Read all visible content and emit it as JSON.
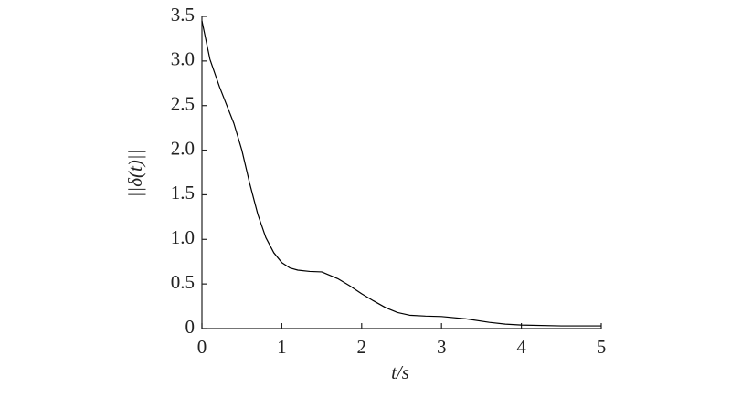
{
  "chart_data": {
    "type": "line",
    "xlabel": "t/s",
    "ylabel": "||δ(t)||",
    "x": [
      0,
      0.1,
      0.22,
      0.4,
      0.5,
      0.6,
      0.7,
      0.8,
      0.9,
      1.0,
      1.1,
      1.2,
      1.35,
      1.5,
      1.7,
      1.85,
      2.0,
      2.15,
      2.3,
      2.45,
      2.6,
      2.8,
      3.0,
      3.3,
      3.6,
      3.8,
      4.0,
      4.5,
      5.0
    ],
    "series": [
      {
        "color": "#000000",
        "values": [
          3.45,
          3.02,
          2.71,
          2.3,
          2.0,
          1.62,
          1.28,
          1.02,
          0.85,
          0.74,
          0.68,
          0.655,
          0.64,
          0.635,
          0.56,
          0.48,
          0.39,
          0.31,
          0.235,
          0.18,
          0.15,
          0.14,
          0.135,
          0.11,
          0.07,
          0.05,
          0.04,
          0.03,
          0.03
        ]
      }
    ],
    "xlim": [
      0,
      5
    ],
    "xticks": [
      0,
      1,
      2,
      3,
      4,
      5
    ],
    "ylim": [
      0,
      3.5
    ],
    "yticks": [
      0,
      0.5,
      {
        "value": 1,
        "label": "1.0"
      },
      1.5,
      {
        "value": 2,
        "label": "2.0"
      },
      2.5,
      {
        "value": 3,
        "label": "3.0"
      },
      3.5
    ],
    "grid": false
  }
}
